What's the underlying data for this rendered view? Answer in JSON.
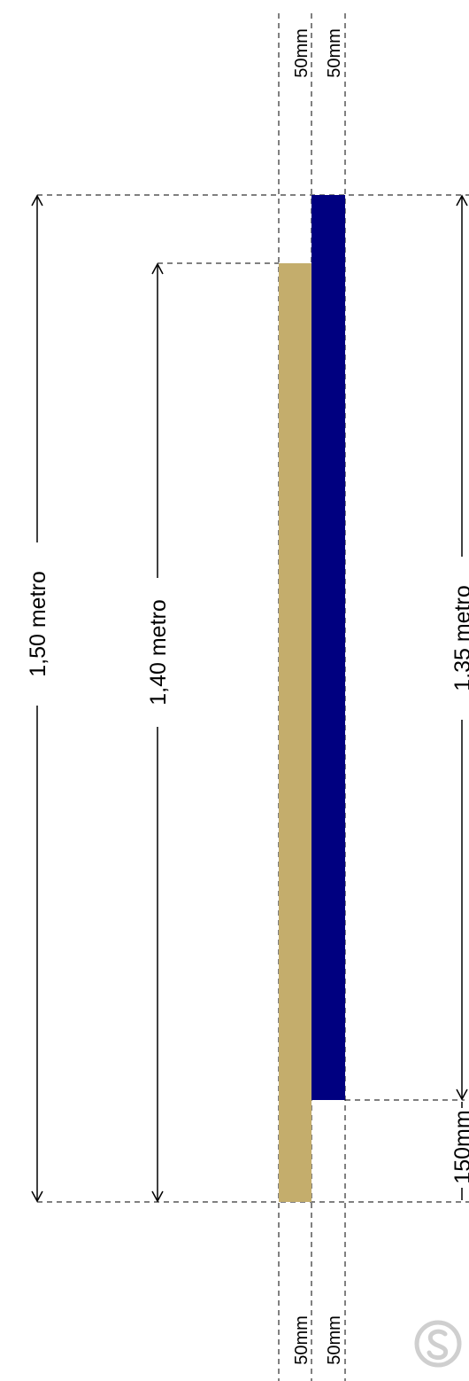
{
  "labels": {
    "length_outer": "1,50 metro",
    "length_inner": "1,40 metro",
    "length_right": "1,35 metro",
    "gap_bottom": "150mm",
    "width_tan_top": "50mm",
    "width_blue_top": "50mm",
    "width_tan_bottom": "50mm",
    "width_blue_bottom": "50mm"
  },
  "colors": {
    "tan_strip": "#c4ad6c",
    "blue_strip": "#000080",
    "logo": "#cfcfcf"
  },
  "icons": {
    "logo": "brand-logo-icon"
  }
}
